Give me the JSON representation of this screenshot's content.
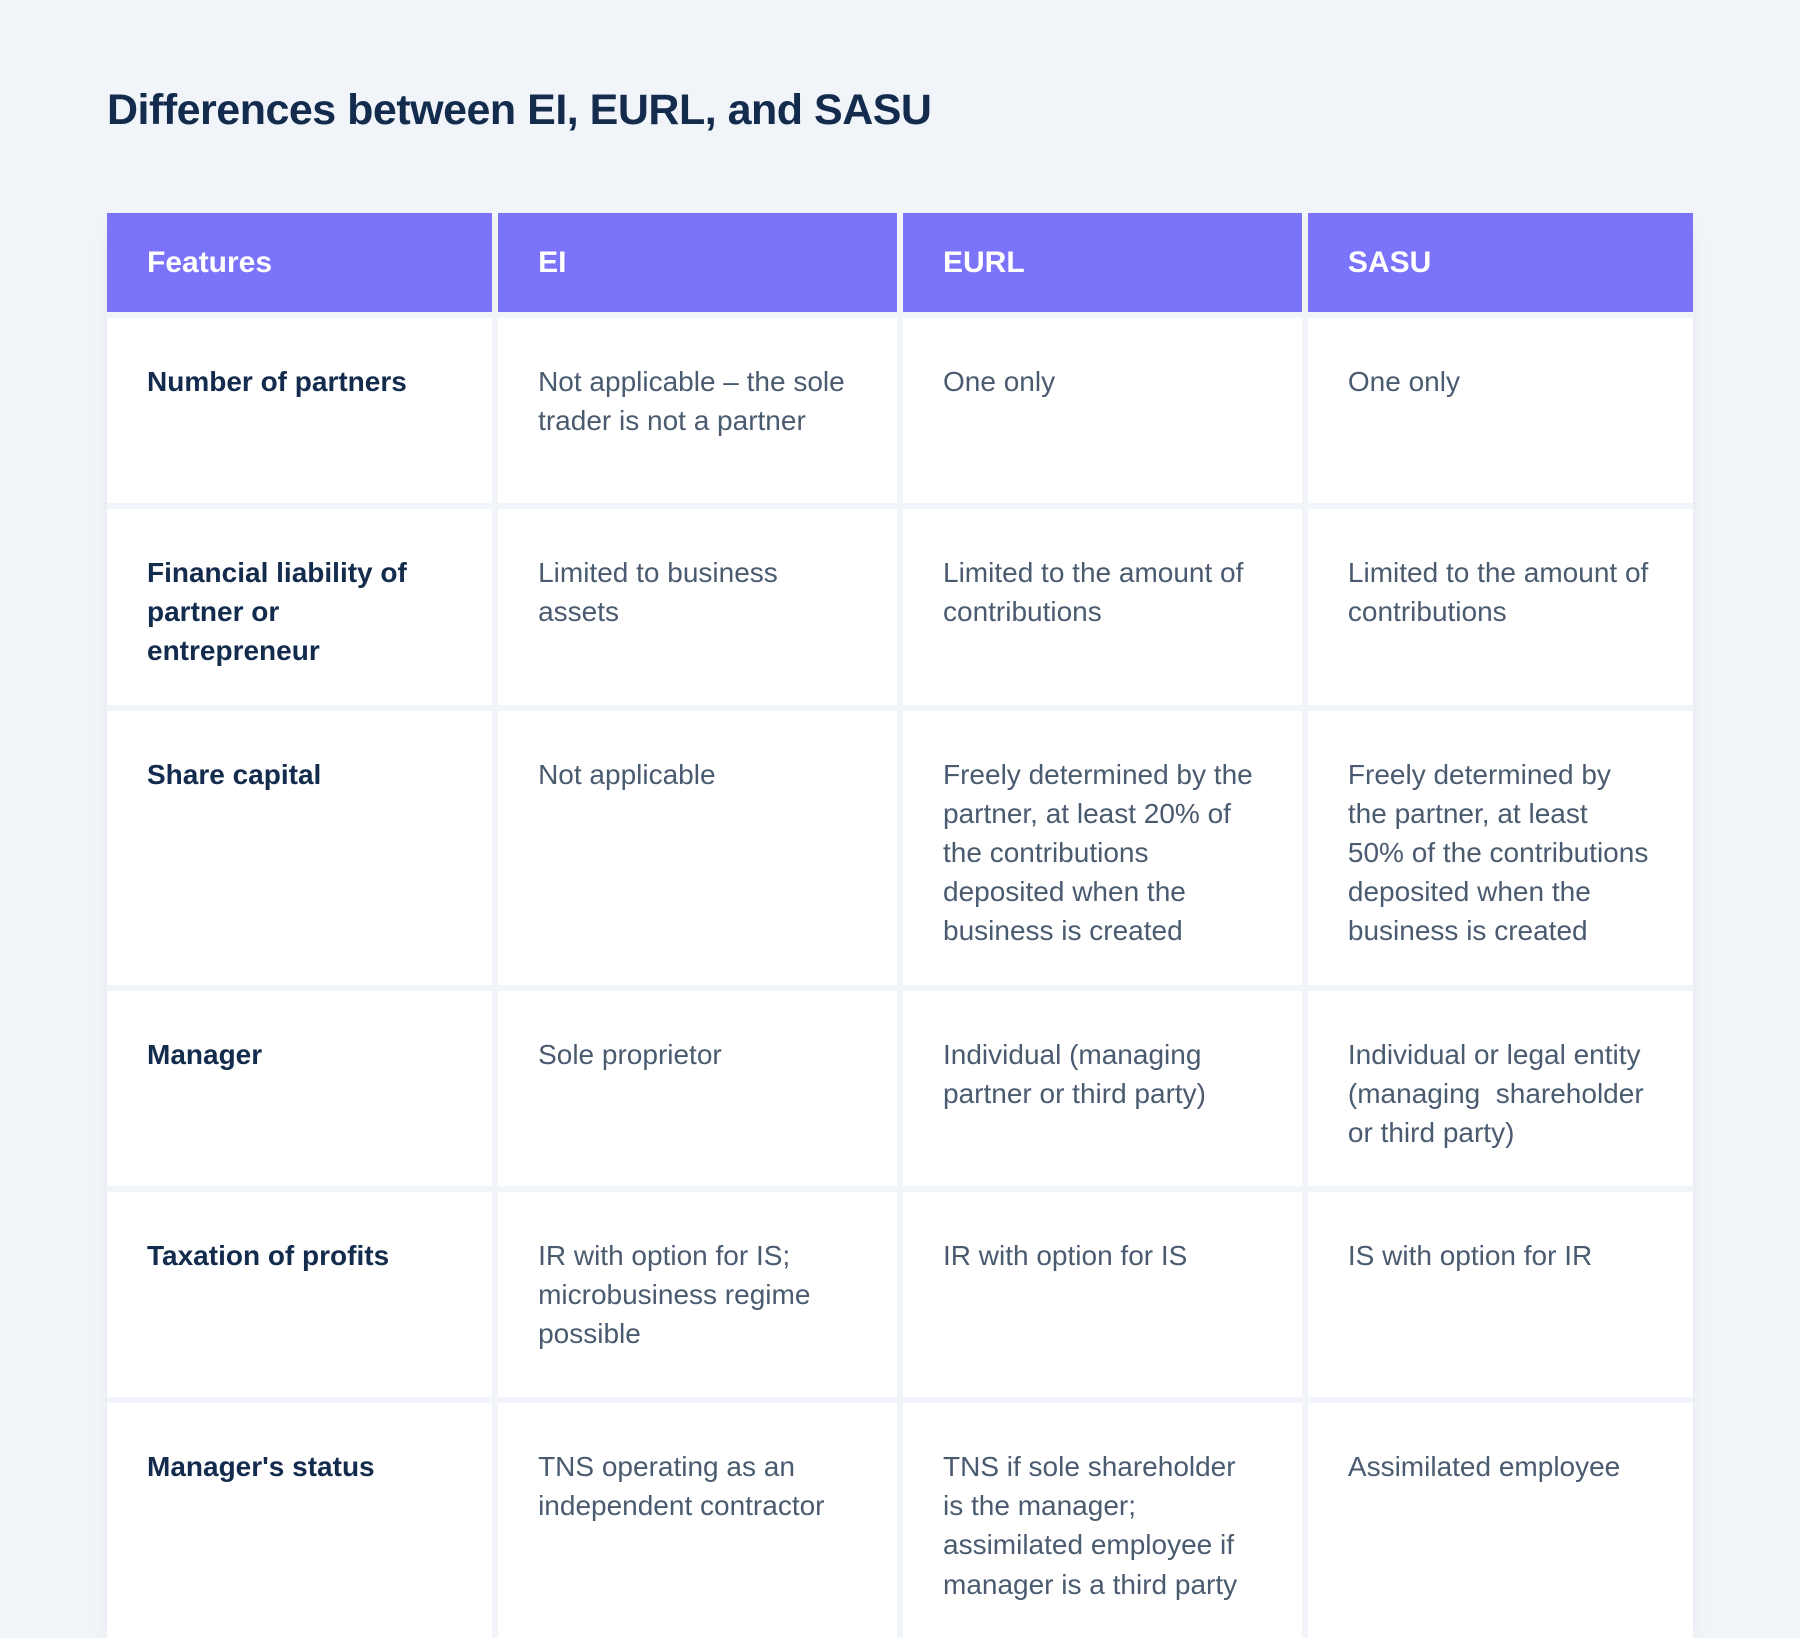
{
  "page": {
    "title": "Differences between EI, EURL, and SASU"
  },
  "table": {
    "columns": [
      "Features",
      "EI",
      "EURL",
      "SASU"
    ],
    "rows": [
      {
        "feature": "Number of partners",
        "ei": "Not applicable – the sole trader is not a partner",
        "eurl": "One only",
        "sasu": "One only"
      },
      {
        "feature": "Financial liability of partner or entrepreneur",
        "ei": "Limited to business assets",
        "eurl": "Limited to the amount of contributions",
        "sasu": "Limited to the amount of contributions"
      },
      {
        "feature": "Share capital",
        "ei": "Not applicable",
        "eurl": "Freely determined by the partner, at least 20% of the contributions deposited when the business is created",
        "sasu": "Freely determined by the partner, at least 50% of the contributions deposited when the business is created"
      },
      {
        "feature": "Manager",
        "ei": "Sole proprietor",
        "eurl": "Individual (managing partner or third party)",
        "sasu": "Individual or legal entity (managing  shareholder or third party)"
      },
      {
        "feature": "Taxation of profits",
        "ei": "IR with option for IS; microbusiness regime possible",
        "eurl": "IR with option for IS",
        "sasu": "IS with option for IR"
      },
      {
        "feature": "Manager's status",
        "ei": "TNS operating as an independent contractor",
        "eurl": "TNS if sole shareholder is the manager; assimilated employee if manager is a third party",
        "sasu": "Assimilated employee"
      }
    ],
    "colors": {
      "page_bg": "#F1F5F9",
      "header_bg": "#7B73FA",
      "header_text": "#FFFFFF",
      "feature_text": "#132B4D",
      "cell_text": "#4A5B70",
      "cell_bg": "#FFFFFF"
    }
  }
}
